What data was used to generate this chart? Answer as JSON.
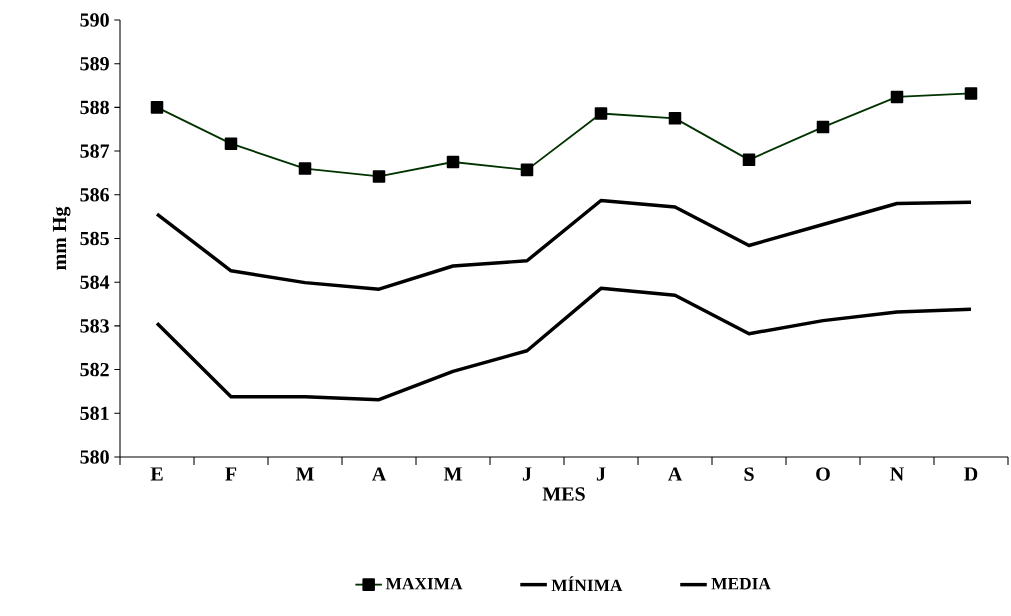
{
  "chart_data": {
    "type": "line",
    "xlabel": "MES",
    "ylabel": "mm Hg",
    "categories": [
      "E",
      "F",
      "M",
      "A",
      "M",
      "J",
      "J",
      "A",
      "S",
      "O",
      "N",
      "D"
    ],
    "series": [
      {
        "name": "MAXIMA",
        "color": "#003300",
        "marker": "square",
        "values": [
          588.0,
          587.17,
          586.6,
          586.42,
          586.75,
          586.57,
          587.86,
          587.75,
          586.8,
          587.55,
          588.24,
          588.32
        ]
      },
      {
        "name": "MÍNIMA",
        "color": "#000000",
        "values": [
          583.06,
          581.38,
          581.38,
          581.31,
          581.96,
          582.43,
          583.86,
          583.7,
          582.82,
          583.12,
          583.32,
          583.38
        ]
      },
      {
        "name": "MEDIA",
        "color": "#000000",
        "values": [
          585.56,
          584.26,
          583.99,
          583.84,
          584.37,
          584.49,
          585.87,
          585.72,
          584.84,
          585.32,
          585.8,
          585.83
        ]
      }
    ],
    "ylim": [
      580,
      590
    ],
    "yticks": [
      580,
      581,
      582,
      583,
      584,
      585,
      586,
      587,
      588,
      589,
      590
    ],
    "legend": "bottom",
    "grid": false
  }
}
